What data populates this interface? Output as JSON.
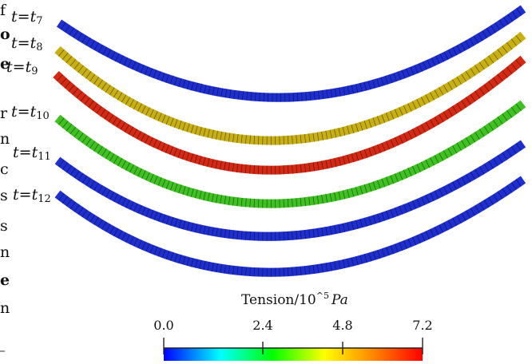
{
  "edge_fragment": [
    "f",
    "o",
    "e",
    "r",
    "n",
    "c",
    "s",
    "s",
    "n",
    "e",
    "n"
  ],
  "strips": [
    {
      "label_t": "t",
      "label_eq": "=",
      "label_base": "t",
      "label_sub": "7",
      "color": "#1f2fcf"
    },
    {
      "label_t": "t",
      "label_eq": "=",
      "label_base": "t",
      "label_sub": "8",
      "color": "#c9b012"
    },
    {
      "label_t": "t",
      "label_eq": "=",
      "label_base": "t",
      "label_sub": "9",
      "color": "#d42a14"
    },
    {
      "label_t": "t",
      "label_eq": "=",
      "label_base": "t",
      "label_sub": "10",
      "color": "#3fc221"
    },
    {
      "label_t": "t",
      "label_eq": "=",
      "label_base": "t",
      "label_sub": "11",
      "color": "#1f2fcf"
    },
    {
      "label_t": "t",
      "label_eq": "=",
      "label_base": "t",
      "label_sub": "12",
      "color": "#1f2fcf"
    }
  ],
  "colorbar": {
    "title_text": "Tension/10",
    "title_sup": "^5",
    "title_unit": "Pa",
    "ticks": [
      "0.0",
      "2.4",
      "4.8",
      "7.2"
    ],
    "range": [
      0.0,
      7.2
    ],
    "colors": [
      "#0000ff",
      "#00ffff",
      "#00ff00",
      "#ffff00",
      "#ff8000",
      "#ff0000"
    ]
  }
}
